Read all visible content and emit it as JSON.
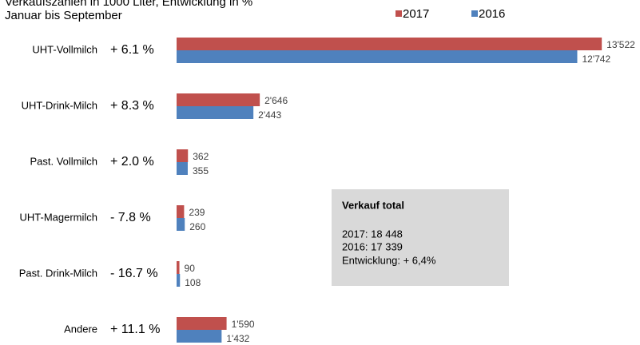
{
  "chart_data": {
    "type": "bar",
    "orientation": "horizontal",
    "title": "Verkaufszahlen in 1000 Liter, Entwicklung in %",
    "subtitle": "Januar bis September",
    "categories": [
      "UHT-Vollmilch",
      "UHT-Drink-Milch",
      "Past. Vollmilch",
      "UHT-Magermilch",
      "Past. Drink-Milch",
      "Andere"
    ],
    "changes": [
      "+ 6.1 %",
      "+ 8.3 %",
      "+ 2.0 %",
      "- 7.8 %",
      "- 16.7 %",
      "+ 11.1 %"
    ],
    "series": [
      {
        "name": "2017",
        "color": "#c0504d",
        "values": [
          13522,
          2646,
          362,
          239,
          90,
          1590
        ],
        "value_labels": [
          "13'522",
          "2'646",
          "362",
          "239",
          "90",
          "1'590"
        ]
      },
      {
        "name": "2016",
        "color": "#4f81bd",
        "values": [
          12742,
          2443,
          355,
          260,
          108,
          1432
        ],
        "value_labels": [
          "12'742",
          "2'443",
          "355",
          "260",
          "108",
          "1'432"
        ]
      }
    ],
    "xlim": [
      0,
      14000
    ],
    "box": {
      "title": "Verkauf total",
      "lines": [
        "2017: 18 448",
        "2016: 17 339",
        "Entwicklung: + 6,4%"
      ]
    }
  }
}
